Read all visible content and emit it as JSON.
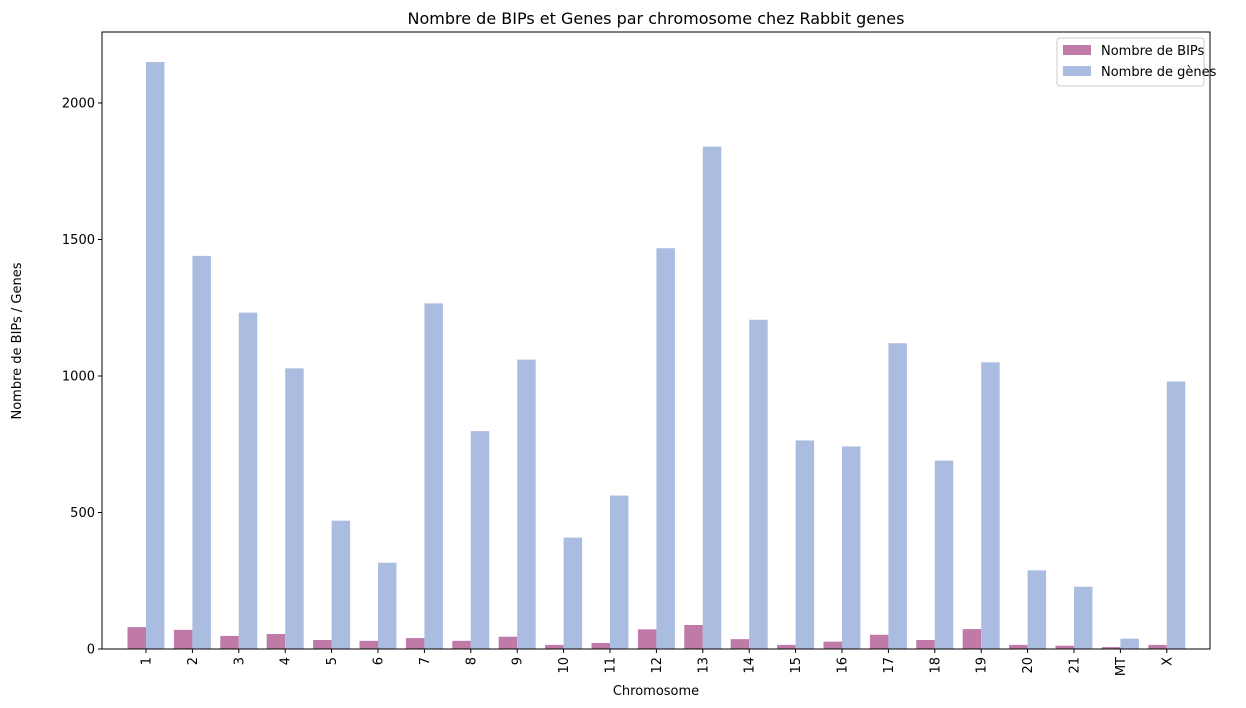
{
  "chart_data": {
    "type": "bar",
    "title": "Nombre de BIPs et Genes par chromosome chez Rabbit genes",
    "xlabel": "Chromosome",
    "ylabel": "Nombre de BIPs / Genes",
    "ylim": [
      0,
      2260
    ],
    "yticks": [
      0,
      500,
      1000,
      1500,
      2000
    ],
    "grid": false,
    "legend_position": "top-right",
    "categories": [
      "1",
      "2",
      "3",
      "4",
      "5",
      "6",
      "7",
      "8",
      "9",
      "10",
      "11",
      "12",
      "13",
      "14",
      "15",
      "16",
      "17",
      "18",
      "19",
      "20",
      "21",
      "MT",
      "X"
    ],
    "series": [
      {
        "name": "Nombre de BIPs",
        "color": "#bf7aa8",
        "values": [
          80,
          70,
          48,
          55,
          33,
          30,
          40,
          30,
          45,
          15,
          22,
          72,
          88,
          36,
          15,
          27,
          52,
          33,
          73,
          15,
          12,
          7,
          15
        ]
      },
      {
        "name": "Nombre de gènes",
        "color": "#aabde0",
        "values": [
          2150,
          1440,
          1232,
          1028,
          470,
          316,
          1266,
          798,
          1060,
          408,
          562,
          1468,
          1840,
          1206,
          764,
          742,
          1120,
          690,
          1050,
          288,
          228,
          38,
          980
        ]
      }
    ]
  }
}
